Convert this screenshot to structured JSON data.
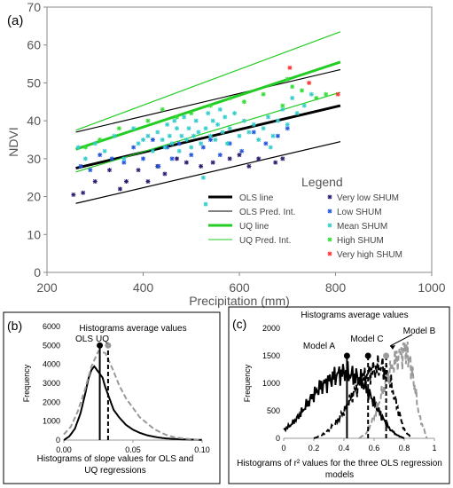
{
  "chart_data": [
    {
      "panel": "(a)",
      "type": "scatter",
      "xlabel": "Precipitation  (mm)",
      "ylabel": "NDVI",
      "xlim": [
        200,
        1000
      ],
      "ylim": [
        0,
        70
      ],
      "xticks": [
        "200",
        "400",
        "600",
        "800",
        "1000"
      ],
      "yticks": [
        "0",
        "10",
        "20",
        "30",
        "40",
        "50",
        "60",
        "70"
      ],
      "grid": false,
      "legend_title": "Legend",
      "legend_placement": "lower-right",
      "lines": [
        {
          "name": "OLS line",
          "color": "#000000",
          "style": "solid",
          "weight": "thick",
          "x": [
            260,
            810
          ],
          "y": [
            27.5,
            44.0
          ]
        },
        {
          "name": "OLS Pred. Int.",
          "color": "#000000",
          "style": "solid",
          "weight": "thin",
          "x": [
            260,
            810
          ],
          "y": [
            37.0,
            53.5
          ]
        },
        {
          "name": "OLS Pred. Int. lower",
          "color": "#000000",
          "style": "solid",
          "weight": "thin",
          "x": [
            260,
            810
          ],
          "y": [
            18.2,
            34.5
          ]
        },
        {
          "name": "UQ line",
          "color": "#22cc22",
          "style": "solid",
          "weight": "thick",
          "x": [
            260,
            810
          ],
          "y": [
            32.5,
            55.5
          ]
        },
        {
          "name": "UQ Pred. Int.",
          "color": "#22cc22",
          "style": "solid",
          "weight": "thin",
          "x": [
            260,
            810
          ],
          "y": [
            37.5,
            63.5
          ]
        },
        {
          "name": "UQ Pred. Int. lower",
          "color": "#22cc22",
          "style": "solid",
          "weight": "thin",
          "x": [
            260,
            810
          ],
          "y": [
            26.5,
            47.5
          ]
        }
      ],
      "series": [
        {
          "name": "Very low SHUM",
          "color": "#2b1a6e",
          "points": [
            [
              255,
              20.5
            ],
            [
              275,
              21
            ],
            [
              300,
              24
            ],
            [
              330,
              27
            ],
            [
              352,
              22
            ],
            [
              365,
              24
            ],
            [
              390,
              27
            ],
            [
              410,
              24
            ],
            [
              430,
              28
            ],
            [
              445,
              26
            ],
            [
              470,
              30
            ],
            [
              490,
              29
            ],
            [
              520,
              28
            ],
            [
              545,
              29
            ],
            [
              580,
              30
            ],
            [
              600,
              31
            ],
            [
              620,
              28
            ],
            [
              640,
              30
            ],
            [
              675,
              29
            ],
            [
              690,
              30
            ]
          ]
        },
        {
          "name": "Low SHUM",
          "color": "#2255dd",
          "points": [
            [
              270,
              28
            ],
            [
              290,
              27
            ],
            [
              310,
              31
            ],
            [
              335,
              30
            ],
            [
              360,
              29
            ],
            [
              380,
              33
            ],
            [
              400,
              30
            ],
            [
              420,
              35
            ],
            [
              432,
              28
            ],
            [
              450,
              33
            ],
            [
              460,
              30
            ],
            [
              475,
              34
            ],
            [
              500,
              31
            ],
            [
              525,
              33
            ],
            [
              540,
              35
            ],
            [
              560,
              31
            ],
            [
              580,
              34
            ],
            [
              605,
              32
            ],
            [
              630,
              37
            ],
            [
              655,
              34
            ],
            [
              680,
              36
            ],
            [
              700,
              38
            ]
          ]
        },
        {
          "name": "Mean SHUM",
          "color": "#33cccc",
          "points": [
            [
              265,
              33
            ],
            [
              280,
              30
            ],
            [
              300,
              34
            ],
            [
              320,
              32
            ],
            [
              340,
              36
            ],
            [
              360,
              30
            ],
            [
              380,
              38
            ],
            [
              390,
              34
            ],
            [
              400,
              35
            ],
            [
              410,
              36
            ],
            [
              420,
              32
            ],
            [
              430,
              37
            ],
            [
              440,
              35
            ],
            [
              445,
              33
            ],
            [
              450,
              39
            ],
            [
              455,
              36
            ],
            [
              460,
              34
            ],
            [
              465,
              40
            ],
            [
              470,
              38
            ],
            [
              475,
              32
            ],
            [
              480,
              36
            ],
            [
              485,
              41
            ],
            [
              490,
              35
            ],
            [
              495,
              38
            ],
            [
              500,
              33
            ],
            [
              505,
              36
            ],
            [
              510,
              40
            ],
            [
              515,
              37
            ],
            [
              520,
              34
            ],
            [
              525,
              25
            ],
            [
              530,
              38
            ],
            [
              535,
              42
            ],
            [
              540,
              36
            ],
            [
              545,
              40
            ],
            [
              550,
              35
            ],
            [
              555,
              39
            ],
            [
              560,
              43
            ],
            [
              565,
              37
            ],
            [
              570,
              41
            ],
            [
              575,
              34
            ],
            [
              580,
              38
            ],
            [
              590,
              42
            ],
            [
              600,
              36
            ],
            [
              610,
              40
            ],
            [
              620,
              37
            ],
            [
              630,
              39
            ],
            [
              640,
              35
            ],
            [
              650,
              38
            ],
            [
              660,
              41
            ],
            [
              665,
              33
            ],
            [
              670,
              36
            ],
            [
              680,
              40
            ],
            [
              690,
              43
            ],
            [
              700,
              39
            ],
            [
              710,
              46
            ],
            [
              720,
              42
            ],
            [
              735,
              44
            ],
            [
              750,
              47
            ],
            [
              530,
              18
            ]
          ]
        },
        {
          "name": "High SHUM",
          "color": "#33dd33",
          "points": [
            [
              280,
              33
            ],
            [
              310,
              35
            ],
            [
              350,
              38
            ],
            [
              410,
              40
            ],
            [
              440,
              43
            ],
            [
              470,
              41
            ],
            [
              500,
              42
            ],
            [
              540,
              44
            ],
            [
              580,
              46
            ],
            [
              610,
              45
            ],
            [
              650,
              47
            ],
            [
              690,
              44
            ],
            [
              710,
              49
            ],
            [
              730,
              48
            ],
            [
              760,
              46
            ],
            [
              780,
              47
            ],
            [
              700,
              51
            ]
          ]
        },
        {
          "name": "Very high SHUM",
          "color": "#ff3333",
          "points": [
            [
              705,
              54
            ],
            [
              745,
              50
            ],
            [
              805,
              47
            ]
          ]
        }
      ]
    },
    {
      "panel": "(b)",
      "type": "line",
      "title": "Histograms average values",
      "xlabel": "Histograms of slope values for OLS and UQ regressions",
      "ylabel": "Frequency",
      "xlim": [
        0,
        0.1
      ],
      "ylim": [
        0,
        6000
      ],
      "xticks": [
        "0.00",
        "0.05",
        "0.10"
      ],
      "yticks": [
        "0",
        "1000",
        "2000",
        "3000",
        "4000",
        "5000",
        "6000"
      ],
      "annotations": [
        "OLS",
        "UQ"
      ],
      "averages": [
        {
          "name": "OLS",
          "x": 0.026,
          "y": 5000,
          "style": "solid"
        },
        {
          "name": "UQ",
          "x": 0.032,
          "y": 5000,
          "style": "dashed"
        }
      ],
      "series": [
        {
          "name": "OLS",
          "style": "solid",
          "color": "#000000",
          "x": [
            0.0,
            0.004,
            0.008,
            0.012,
            0.015,
            0.018,
            0.02,
            0.022,
            0.024,
            0.026,
            0.028,
            0.03,
            0.033,
            0.036,
            0.04,
            0.045,
            0.05,
            0.055,
            0.06,
            0.065,
            0.07,
            0.075,
            0.08,
            0.085,
            0.09,
            0.095,
            0.1
          ],
          "y": [
            0,
            200,
            600,
            1400,
            2300,
            3300,
            3700,
            3900,
            3700,
            3500,
            3300,
            2800,
            2200,
            1600,
            1200,
            800,
            550,
            380,
            260,
            180,
            120,
            80,
            60,
            40,
            30,
            20,
            10
          ]
        },
        {
          "name": "UQ",
          "style": "dashed",
          "color": "#999999",
          "x": [
            0.0,
            0.005,
            0.01,
            0.015,
            0.02,
            0.025,
            0.03,
            0.035,
            0.04,
            0.045,
            0.05,
            0.055,
            0.06,
            0.065,
            0.07,
            0.075,
            0.08,
            0.085,
            0.09,
            0.095,
            0.1
          ],
          "y": [
            300,
            700,
            1500,
            2600,
            3900,
            4700,
            4600,
            3800,
            2900,
            2200,
            1700,
            1200,
            900,
            600,
            400,
            250,
            150,
            100,
            60,
            30,
            10
          ]
        }
      ]
    },
    {
      "panel": "(c)",
      "type": "line",
      "title": "Histograms average values",
      "xlabel": "Histograms of r² values for the three OLS regression models",
      "ylabel": "Frequency",
      "xlim": [
        0,
        1
      ],
      "ylim": [
        0,
        2000
      ],
      "xticks": [
        "0",
        "0.2",
        "0.4",
        "0.6",
        "0.8",
        "1"
      ],
      "yticks": [
        "0",
        "500",
        "1000",
        "1500",
        "2000"
      ],
      "annotations": [
        "Model A",
        "Model C",
        "Model B"
      ],
      "averages": [
        {
          "name": "Model A",
          "x": 0.42,
          "y": 1500,
          "style": "solid"
        },
        {
          "name": "Model C",
          "x": 0.56,
          "y": 1500,
          "style": "dashed"
        },
        {
          "name": "Model B",
          "x": 0.68,
          "y": 1500,
          "style": "dashed"
        }
      ],
      "series": [
        {
          "name": "Model A",
          "style": "solid",
          "color": "#000000",
          "x": [
            0.0,
            0.05,
            0.1,
            0.15,
            0.2,
            0.25,
            0.3,
            0.35,
            0.4,
            0.45,
            0.5,
            0.55,
            0.6,
            0.65,
            0.7,
            0.75,
            0.8
          ],
          "y": [
            150,
            250,
            400,
            600,
            800,
            950,
            1050,
            1150,
            1200,
            1150,
            1100,
            900,
            650,
            400,
            180,
            60,
            0
          ]
        },
        {
          "name": "Model C",
          "style": "dashed",
          "color": "#000000",
          "x": [
            0.2,
            0.25,
            0.3,
            0.35,
            0.4,
            0.45,
            0.5,
            0.55,
            0.6,
            0.65,
            0.7,
            0.75,
            0.8,
            0.85
          ],
          "y": [
            0,
            50,
            150,
            300,
            500,
            750,
            1000,
            1150,
            1250,
            1300,
            1100,
            600,
            150,
            0
          ]
        },
        {
          "name": "Model B",
          "style": "dashed",
          "color": "#999999",
          "x": [
            0.5,
            0.55,
            0.6,
            0.65,
            0.7,
            0.75,
            0.8,
            0.83,
            0.86,
            0.9,
            0.95
          ],
          "y": [
            0,
            100,
            400,
            800,
            1200,
            1450,
            1600,
            1500,
            1100,
            400,
            0
          ]
        }
      ]
    }
  ],
  "labels": {
    "panel_a": "(a)",
    "panel_b": "(b)",
    "panel_c": "(c)",
    "legend": [
      {
        "text": "OLS line",
        "color": "#000000",
        "width": 3
      },
      {
        "text": "OLS Pred. Int.",
        "color": "#000000",
        "width": 1
      },
      {
        "text": "UQ line",
        "color": "#22cc22",
        "width": 3
      },
      {
        "text": "UQ Pred. Int.",
        "color": "#22cc22",
        "width": 1
      }
    ],
    "shum_legend": [
      {
        "text": "Very low SHUM",
        "color": "#2b1a6e"
      },
      {
        "text": "Low SHUM",
        "color": "#2255dd"
      },
      {
        "text": "Mean SHUM",
        "color": "#33cccc"
      },
      {
        "text": "High SHUM",
        "color": "#33dd33"
      },
      {
        "text": "Very high SHUM",
        "color": "#ff3333"
      }
    ]
  }
}
